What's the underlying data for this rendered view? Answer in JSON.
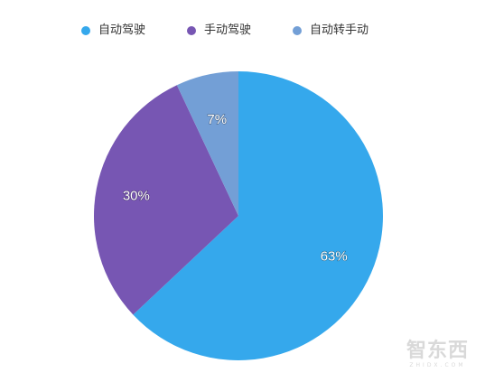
{
  "chart_data": {
    "type": "pie",
    "categories": [
      "自动驾驶",
      "手动驾驶",
      "自动转手动"
    ],
    "values": [
      63,
      30,
      7
    ],
    "data_labels": [
      "63%",
      "30%",
      "7%"
    ],
    "colors": [
      "#35a8ec",
      "#7756b3",
      "#739fd6"
    ],
    "legend_position": "top",
    "start_angle": "12 o'clock",
    "direction": "clockwise",
    "legend": [
      {
        "label": "自动驾驶",
        "color": "#35a8ec"
      },
      {
        "label": "手动驾驶",
        "color": "#7756b3"
      },
      {
        "label": "自动转手动",
        "color": "#739fd6"
      }
    ]
  },
  "watermark": {
    "main": "智东西",
    "sub": "ZHIDX.COM"
  }
}
